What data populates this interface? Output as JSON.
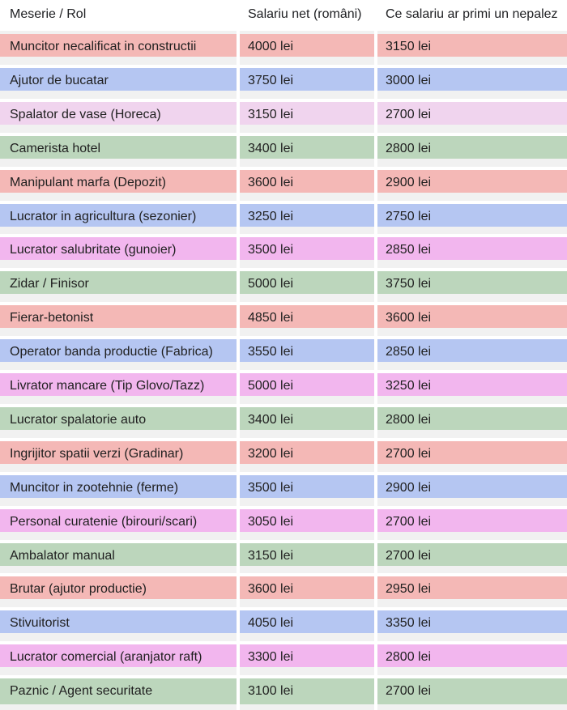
{
  "headers": [
    "Meserie / Rol",
    "Salariu net (români)",
    "Ce salariu ar primi un nepalez"
  ],
  "colors": {
    "red": "#f4b8b6",
    "blue": "#b5c6f2",
    "pink": "#f0d4ee",
    "magenta": "#f2b6ee",
    "green": "#bcd6bc",
    "gap": "#f1f1f1"
  },
  "rows": [
    {
      "role": "Muncitor necalificat in constructii",
      "net_ro": "4000 lei",
      "net_np": "3150 lei",
      "color": "red"
    },
    {
      "role": "Ajutor de bucatar",
      "net_ro": "3750 lei",
      "net_np": "3000 lei",
      "color": "blue"
    },
    {
      "role": "Spalator de vase (Horeca)",
      "net_ro": "3150 lei",
      "net_np": "2700 lei",
      "color": "pink"
    },
    {
      "role": "Camerista hotel",
      "net_ro": "3400 lei",
      "net_np": "2800 lei",
      "color": "green"
    },
    {
      "role": "Manipulant marfa (Depozit)",
      "net_ro": "3600 lei",
      "net_np": "2900 lei",
      "color": "red"
    },
    {
      "role": "Lucrator in agricultura (sezonier)",
      "net_ro": "3250 lei",
      "net_np": "2750 lei",
      "color": "blue"
    },
    {
      "role": "Lucrator salubritate (gunoier)",
      "net_ro": "3500 lei",
      "net_np": "2850 lei",
      "color": "magenta"
    },
    {
      "role": "Zidar / Finisor",
      "net_ro": "5000 lei",
      "net_np": "3750 lei",
      "color": "green"
    },
    {
      "role": "Fierar-betonist",
      "net_ro": "4850 lei",
      "net_np": "3600 lei",
      "color": "red"
    },
    {
      "role": "Operator banda productie (Fabrica)",
      "net_ro": "3550 lei",
      "net_np": "2850 lei",
      "color": "blue"
    },
    {
      "role": "Livrator mancare (Tip Glovo/Tazz)",
      "net_ro": "5000 lei",
      "net_np": "3250 lei",
      "color": "magenta"
    },
    {
      "role": "Lucrator spalatorie auto",
      "net_ro": "3400 lei",
      "net_np": "2800 lei",
      "color": "green"
    },
    {
      "role": "Ingrijitor spatii verzi (Gradinar)",
      "net_ro": "3200 lei",
      "net_np": "2700 lei",
      "color": "red"
    },
    {
      "role": "Muncitor in zootehnie (ferme)",
      "net_ro": "3500 lei",
      "net_np": "2900 lei",
      "color": "blue"
    },
    {
      "role": "Personal curatenie (birouri/scari)",
      "net_ro": "3050 lei",
      "net_np": "2700 lei",
      "color": "magenta"
    },
    {
      "role": "Ambalator manual",
      "net_ro": "3150 lei",
      "net_np": "2700 lei",
      "color": "green"
    },
    {
      "role": "Brutar (ajutor productie)",
      "net_ro": "3600 lei",
      "net_np": "2950 lei",
      "color": "red"
    },
    {
      "role": "Stivuitorist",
      "net_ro": "4050 lei",
      "net_np": "3350 lei",
      "color": "blue"
    },
    {
      "role": "Lucrator comercial (aranjator raft)",
      "net_ro": "3300 lei",
      "net_np": "2800 lei",
      "color": "magenta"
    },
    {
      "role": "Paznic / Agent securitate",
      "net_ro": "3100 lei",
      "net_np": "2700 lei",
      "color": "green"
    }
  ]
}
